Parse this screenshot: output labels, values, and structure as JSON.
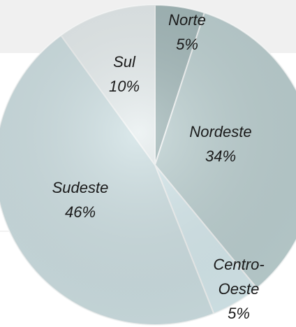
{
  "chart_data": {
    "type": "pie",
    "categories": [
      "Norte",
      "Nordeste",
      "Centro-Oeste",
      "Sudeste",
      "Sul"
    ],
    "values": [
      5,
      34,
      5,
      46,
      10
    ],
    "value_labels": [
      "5%",
      "34%",
      "5%",
      "46%",
      "10%"
    ],
    "colors": [
      "#a3b9ba",
      "#bed2d3",
      "#d9ecf0",
      "#d0e2e5",
      "#e8eff0"
    ]
  }
}
